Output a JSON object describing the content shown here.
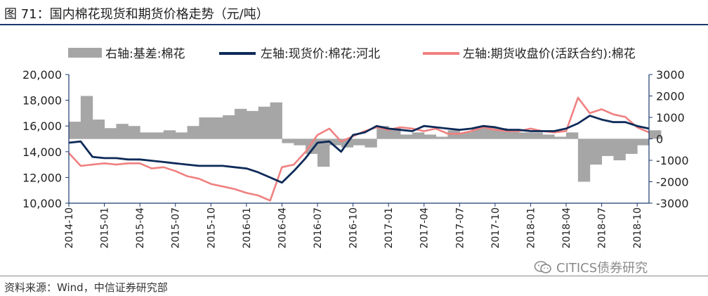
{
  "header": {
    "title": "图 71：国内棉花现货和期货价格走势（元/吨）"
  },
  "footer": {
    "source": "资料来源：Wind，中信证券研究部",
    "watermark": "CITICS债券研究"
  },
  "colors": {
    "basis": "#a6a6a6",
    "spot": "#0d2a58",
    "futures": "#f08080",
    "axis": "#1a3a6e"
  },
  "chart_data": {
    "type": "line",
    "title": "国内棉花现货和期货价格走势（元/吨）",
    "legend_placement": "top",
    "grid": false,
    "x_ticks": [
      "2014-10",
      "2015-01",
      "2015-04",
      "2015-07",
      "2015-10",
      "2016-01",
      "2016-04",
      "2016-07",
      "2016-10",
      "2017-01",
      "2017-04",
      "2017-07",
      "2017-10",
      "2018-01",
      "2018-04",
      "2018-07",
      "2018-10"
    ],
    "xlim": [
      "2014-10",
      "2018-11"
    ],
    "y_left": {
      "ylim": [
        10000,
        20000
      ],
      "ticks": [
        "10,000",
        "12,000",
        "14,000",
        "16,000",
        "18,000",
        "20,000"
      ]
    },
    "y_right": {
      "ylim": [
        -3000,
        3000
      ],
      "ticks": [
        "-3000",
        "-2000",
        "-1000",
        "0",
        "1000",
        "2000",
        "3000"
      ]
    },
    "series": [
      {
        "name": "右轴:基差:棉花",
        "type": "area",
        "axis": "right",
        "x": [
          "2014-10",
          "2014-11",
          "2014-12",
          "2015-01",
          "2015-02",
          "2015-03",
          "2015-04",
          "2015-05",
          "2015-06",
          "2015-07",
          "2015-08",
          "2015-09",
          "2015-10",
          "2015-11",
          "2015-12",
          "2016-01",
          "2016-02",
          "2016-03",
          "2016-04",
          "2016-05",
          "2016-06",
          "2016-07",
          "2016-08",
          "2016-09",
          "2016-10",
          "2016-11",
          "2016-12",
          "2017-01",
          "2017-02",
          "2017-03",
          "2017-04",
          "2017-05",
          "2017-06",
          "2017-07",
          "2017-08",
          "2017-09",
          "2017-10",
          "2017-11",
          "2017-12",
          "2018-01",
          "2018-02",
          "2018-03",
          "2018-04",
          "2018-05",
          "2018-06",
          "2018-07",
          "2018-08",
          "2018-09",
          "2018-10",
          "2018-11"
        ],
        "values": [
          800,
          2000,
          900,
          500,
          700,
          600,
          300,
          300,
          400,
          300,
          600,
          1000,
          1000,
          1100,
          1400,
          1300,
          1500,
          1700,
          -200,
          -300,
          -700,
          -1300,
          -300,
          -400,
          -300,
          -400,
          600,
          500,
          200,
          300,
          200,
          100,
          400,
          300,
          500,
          600,
          500,
          400,
          300,
          300,
          200,
          100,
          300,
          -2000,
          -1200,
          -800,
          -1000,
          -700,
          -300,
          400
        ]
      },
      {
        "name": "左轴:现货价:棉花:河北",
        "type": "line",
        "axis": "left",
        "x": [
          "2014-10",
          "2014-11",
          "2014-12",
          "2015-01",
          "2015-02",
          "2015-03",
          "2015-04",
          "2015-05",
          "2015-06",
          "2015-07",
          "2015-08",
          "2015-09",
          "2015-10",
          "2015-11",
          "2015-12",
          "2016-01",
          "2016-02",
          "2016-03",
          "2016-04",
          "2016-05",
          "2016-06",
          "2016-07",
          "2016-08",
          "2016-09",
          "2016-10",
          "2016-11",
          "2016-12",
          "2017-01",
          "2017-02",
          "2017-03",
          "2017-04",
          "2017-05",
          "2017-06",
          "2017-07",
          "2017-08",
          "2017-09",
          "2017-10",
          "2017-11",
          "2017-12",
          "2018-01",
          "2018-02",
          "2018-03",
          "2018-04",
          "2018-05",
          "2018-06",
          "2018-07",
          "2018-08",
          "2018-09",
          "2018-10",
          "2018-11"
        ],
        "values": [
          14700,
          14800,
          13600,
          13500,
          13500,
          13400,
          13400,
          13300,
          13200,
          13100,
          13000,
          12900,
          12900,
          12900,
          12800,
          12700,
          12400,
          12000,
          11600,
          12500,
          13500,
          14700,
          14800,
          14000,
          15300,
          15500,
          16000,
          15800,
          15700,
          15600,
          16000,
          15900,
          15800,
          15700,
          15800,
          16000,
          15900,
          15700,
          15700,
          15600,
          15600,
          15600,
          15800,
          16200,
          16800,
          16500,
          16300,
          16300,
          16000,
          15800
        ]
      },
      {
        "name": "左轴:期货收盘价(活跃合约):棉花",
        "type": "line",
        "axis": "left",
        "x": [
          "2014-10",
          "2014-11",
          "2014-12",
          "2015-01",
          "2015-02",
          "2015-03",
          "2015-04",
          "2015-05",
          "2015-06",
          "2015-07",
          "2015-08",
          "2015-09",
          "2015-10",
          "2015-11",
          "2015-12",
          "2016-01",
          "2016-02",
          "2016-03",
          "2016-04",
          "2016-05",
          "2016-06",
          "2016-07",
          "2016-08",
          "2016-09",
          "2016-10",
          "2016-11",
          "2016-12",
          "2017-01",
          "2017-02",
          "2017-03",
          "2017-04",
          "2017-05",
          "2017-06",
          "2017-07",
          "2017-08",
          "2017-09",
          "2017-10",
          "2017-11",
          "2017-12",
          "2018-01",
          "2018-02",
          "2018-03",
          "2018-04",
          "2018-05",
          "2018-06",
          "2018-07",
          "2018-08",
          "2018-09",
          "2018-10",
          "2018-11"
        ],
        "values": [
          13900,
          12900,
          13000,
          13100,
          13000,
          13100,
          13100,
          12700,
          12800,
          12500,
          12100,
          11900,
          11500,
          11300,
          11100,
          10800,
          10600,
          10200,
          12800,
          13000,
          14000,
          15300,
          15800,
          14800,
          15200,
          15600,
          15900,
          15700,
          15900,
          15800,
          15600,
          15800,
          15400,
          15400,
          15600,
          15900,
          15700,
          15600,
          15600,
          15800,
          15600,
          15500,
          15600,
          18200,
          17000,
          17300,
          16900,
          16700,
          15900,
          15500
        ]
      }
    ]
  }
}
